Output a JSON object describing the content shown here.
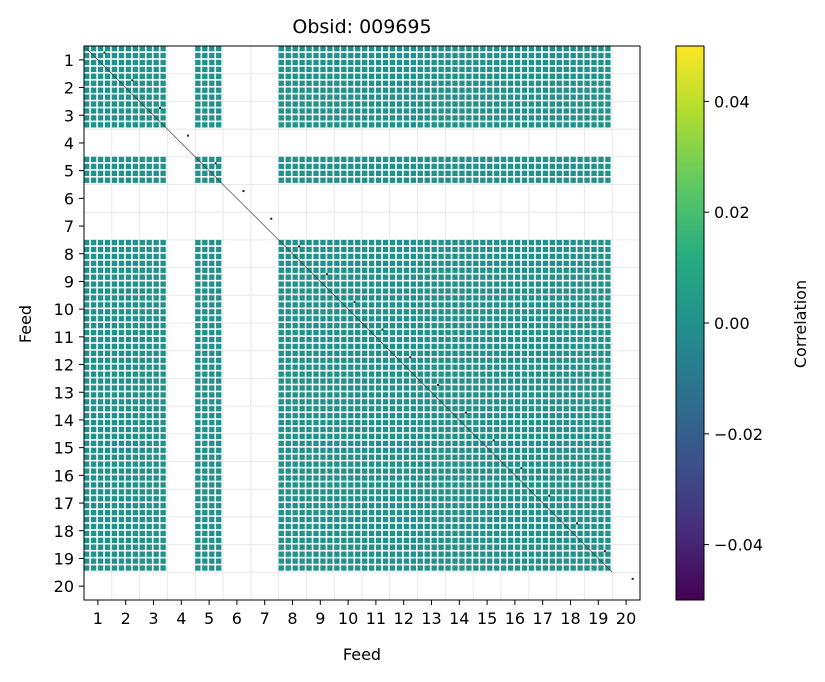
{
  "chart_data": {
    "type": "heatmap",
    "title": "Obsid: 009695",
    "xlabel": "Feed",
    "ylabel": "Feed",
    "feeds": [
      1,
      2,
      3,
      4,
      5,
      6,
      7,
      8,
      9,
      10,
      11,
      12,
      13,
      14,
      15,
      16,
      17,
      18,
      19,
      20
    ],
    "active_feeds": [
      1,
      2,
      3,
      5,
      8,
      9,
      10,
      11,
      12,
      13,
      14,
      15,
      16,
      17,
      18,
      19
    ],
    "inactive_feeds": [
      4,
      6,
      7,
      20
    ],
    "value_in_active_block": 0.0,
    "block_color": "#21918c",
    "diagonal_marked": true,
    "grid": true,
    "colorbar": {
      "label": "Correlation",
      "vmin": -0.05,
      "vmax": 0.05,
      "ticks": [
        -0.04,
        -0.02,
        0.0,
        0.02,
        0.04
      ],
      "tick_labels": [
        "−0.04",
        "−0.02",
        "0.00",
        "0.02",
        "0.04"
      ],
      "colormap": "viridis"
    }
  }
}
